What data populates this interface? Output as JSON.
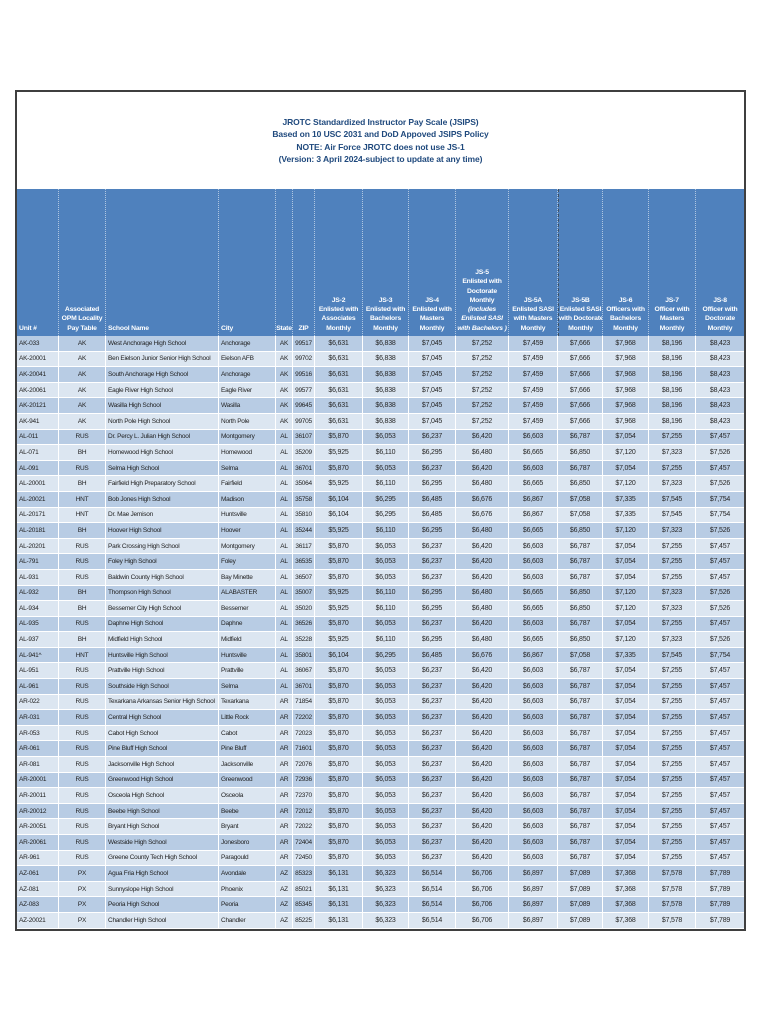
{
  "document": {
    "title_lines": [
      "JROTC Standardized Instructor Pay Scale (JSIPS)",
      "Based on 10 USC 2031 and DoD Appoved JSIPS Policy",
      "NOTE: Air Force JROTC does not use JS-1",
      "(Version: 3 April 2024-subject to update at any time)"
    ]
  },
  "colors": {
    "header_bg": "#4f81bd",
    "row_band_dark": "#b8cce4",
    "row_band_light": "#dce6f1",
    "title_text": "#1f497d",
    "frame_border": "#3f3f3f"
  },
  "table": {
    "columns": [
      {
        "id": "unit",
        "lines": [
          "Unit #"
        ],
        "align": "left"
      },
      {
        "id": "opm",
        "lines": [
          "Associated",
          "OPM Locality",
          "Pay Table"
        ],
        "align": "center"
      },
      {
        "id": "school",
        "lines": [
          "School Name"
        ],
        "align": "left"
      },
      {
        "id": "city",
        "lines": [
          "City"
        ],
        "align": "left"
      },
      {
        "id": "state",
        "lines": [
          "State"
        ],
        "align": "center"
      },
      {
        "id": "zip",
        "lines": [
          "ZIP"
        ],
        "align": "center"
      },
      {
        "id": "js2",
        "lines": [
          "JS-2",
          "Enlisted with",
          "Associates",
          "Monthly"
        ],
        "align": "center"
      },
      {
        "id": "js3",
        "lines": [
          "JS-3",
          "Enlisted with",
          "Bachelors",
          "Monthly"
        ],
        "align": "center"
      },
      {
        "id": "js4",
        "lines": [
          "JS-4",
          "Enlisted with",
          "Masters",
          "Monthly"
        ],
        "align": "center"
      },
      {
        "id": "js5",
        "lines": [
          "JS-5",
          "Enlisted with",
          "Doctorate",
          "Monthly",
          "(includes",
          "Enlisted SASI",
          "with Bachelors )"
        ],
        "italic_from": 4,
        "align": "center"
      },
      {
        "id": "js5a",
        "lines": [
          "JS-5A",
          "Enlisted SASI",
          "with Masters",
          "Monthly"
        ],
        "align": "center"
      },
      {
        "id": "js5b",
        "lines": [
          "JS-5B",
          "Enlisted SASI",
          "with Doctorate",
          "Monthly"
        ],
        "align": "center",
        "pagebreak_left": true
      },
      {
        "id": "js6",
        "lines": [
          "JS-6",
          "Officers with",
          "Bachelors",
          "Monthly"
        ],
        "align": "center"
      },
      {
        "id": "js7",
        "lines": [
          "JS-7",
          "Officer with",
          "Masters",
          "Monthly"
        ],
        "align": "center"
      },
      {
        "id": "js8",
        "lines": [
          "JS-8",
          "Officer with",
          "Doctorate",
          "Monthly"
        ],
        "align": "center"
      }
    ],
    "pay_by_locality": {
      "AK": [
        "$6,631",
        "$6,838",
        "$7,045",
        "$7,252",
        "$7,459",
        "$7,666",
        "$7,968",
        "$8,196",
        "$8,423"
      ],
      "RUS": [
        "$5,870",
        "$6,053",
        "$6,237",
        "$6,420",
        "$6,603",
        "$6,787",
        "$7,054",
        "$7,255",
        "$7,457"
      ],
      "BH": [
        "$5,925",
        "$6,110",
        "$6,295",
        "$6,480",
        "$6,665",
        "$6,850",
        "$7,120",
        "$7,323",
        "$7,526"
      ],
      "HNT": [
        "$6,104",
        "$6,295",
        "$6,485",
        "$6,676",
        "$6,867",
        "$7,058",
        "$7,335",
        "$7,545",
        "$7,754"
      ],
      "PX": [
        "$6,131",
        "$6,323",
        "$6,514",
        "$6,706",
        "$6,897",
        "$7,089",
        "$7,368",
        "$7,578",
        "$7,789"
      ]
    },
    "rows": [
      {
        "unit": "AK-033",
        "opm": "AK",
        "school": "West Anchorage High School",
        "city": "Anchorage",
        "state": "AK",
        "zip": "99517"
      },
      {
        "unit": "AK-20001",
        "opm": "AK",
        "school": "Ben Eielson Junior Senior High School",
        "city": "Eielson AFB",
        "state": "AK",
        "zip": "99702"
      },
      {
        "unit": "AK-20041",
        "opm": "AK",
        "school": "South Anchorage High School",
        "city": "Anchorage",
        "state": "AK",
        "zip": "99516"
      },
      {
        "unit": "AK-20061",
        "opm": "AK",
        "school": "Eagle River High School",
        "city": "Eagle River",
        "state": "AK",
        "zip": "99577"
      },
      {
        "unit": "AK-20121",
        "opm": "AK",
        "school": "Wasilla High School",
        "city": "Wasilla",
        "state": "AK",
        "zip": "99645"
      },
      {
        "unit": "AK-941",
        "opm": "AK",
        "school": "North Pole High School",
        "city": "North Pole",
        "state": "AK",
        "zip": "99705"
      },
      {
        "unit": "AL-011",
        "opm": "RUS",
        "school": "Dr. Percy L. Julian High School",
        "city": "Montgomery",
        "state": "AL",
        "zip": "36107"
      },
      {
        "unit": "AL-071",
        "opm": "BH",
        "school": "Homewood High School",
        "city": "Homewood",
        "state": "AL",
        "zip": "35209"
      },
      {
        "unit": "AL-091",
        "opm": "RUS",
        "school": "Selma High School",
        "city": "Selma",
        "state": "AL",
        "zip": "36701"
      },
      {
        "unit": "AL-20001",
        "opm": "BH",
        "school": "Fairfield High Preparatory School",
        "city": "Fairfield",
        "state": "AL",
        "zip": "35064"
      },
      {
        "unit": "AL-20021",
        "opm": "HNT",
        "school": "Bob Jones High School",
        "city": "Madison",
        "state": "AL",
        "zip": "35758"
      },
      {
        "unit": "AL-20171",
        "opm": "HNT",
        "school": "Dr. Mae Jemison",
        "city": "Huntsville",
        "state": "AL",
        "zip": "35810"
      },
      {
        "unit": "AL-20181",
        "opm": "BH",
        "school": "Hoover High School",
        "city": "Hoover",
        "state": "AL",
        "zip": "35244"
      },
      {
        "unit": "AL-20201",
        "opm": "RUS",
        "school": "Park Crossing High School",
        "city": "Montgomery",
        "state": "AL",
        "zip": "36117"
      },
      {
        "unit": "AL-791",
        "opm": "RUS",
        "school": "Foley High School",
        "city": "Foley",
        "state": "AL",
        "zip": "36535"
      },
      {
        "unit": "AL-931",
        "opm": "RUS",
        "school": "Baldwin County High School",
        "city": "Bay Minette",
        "state": "AL",
        "zip": "36507"
      },
      {
        "unit": "AL-932",
        "opm": "BH",
        "school": "Thompson High School",
        "city": "ALABASTER",
        "state": "AL",
        "zip": "35007"
      },
      {
        "unit": "AL-934",
        "opm": "BH",
        "school": "Bessemer City High School",
        "city": "Bessemer",
        "state": "AL",
        "zip": "35020"
      },
      {
        "unit": "AL-935",
        "opm": "RUS",
        "school": "Daphne High School",
        "city": "Daphne",
        "state": "AL",
        "zip": "36526"
      },
      {
        "unit": "AL-937",
        "opm": "BH",
        "school": "Midfield High School",
        "city": "Midfield",
        "state": "AL",
        "zip": "35228"
      },
      {
        "unit": "AL-941^",
        "opm": "HNT",
        "school": "Huntsville High School",
        "city": "Huntsville",
        "state": "AL",
        "zip": "35801"
      },
      {
        "unit": "AL-951",
        "opm": "RUS",
        "school": "Prattville High School",
        "city": "Prattville",
        "state": "AL",
        "zip": "36067"
      },
      {
        "unit": "AL-961",
        "opm": "RUS",
        "school": "Southside High School",
        "city": "Selma",
        "state": "AL",
        "zip": "36701"
      },
      {
        "unit": "AR-022",
        "opm": "RUS",
        "school": "Texarkana Arkansas Senior High School",
        "city": "Texarkana",
        "state": "AR",
        "zip": "71854"
      },
      {
        "unit": "AR-031",
        "opm": "RUS",
        "school": "Central High School",
        "city": "Little Rock",
        "state": "AR",
        "zip": "72202"
      },
      {
        "unit": "AR-053",
        "opm": "RUS",
        "school": "Cabot High School",
        "city": "Cabot",
        "state": "AR",
        "zip": "72023"
      },
      {
        "unit": "AR-061",
        "opm": "RUS",
        "school": "Pine Bluff High School",
        "city": "Pine Bluff",
        "state": "AR",
        "zip": "71601"
      },
      {
        "unit": "AR-081",
        "opm": "RUS",
        "school": "Jacksonville High School",
        "city": "Jacksonville",
        "state": "AR",
        "zip": "72076"
      },
      {
        "unit": "AR-20001",
        "opm": "RUS",
        "school": "Greenwood High School",
        "city": "Greenwood",
        "state": "AR",
        "zip": "72936"
      },
      {
        "unit": "AR-20011",
        "opm": "RUS",
        "school": "Osceola High School",
        "city": "Osceola",
        "state": "AR",
        "zip": "72370"
      },
      {
        "unit": "AR-20012",
        "opm": "RUS",
        "school": "Beebe High School",
        "city": "Beebe",
        "state": "AR",
        "zip": "72012"
      },
      {
        "unit": "AR-20051",
        "opm": "RUS",
        "school": "Bryant High School",
        "city": "Bryant",
        "state": "AR",
        "zip": "72022"
      },
      {
        "unit": "AR-20061",
        "opm": "RUS",
        "school": "Westside High School",
        "city": "Jonesboro",
        "state": "AR",
        "zip": "72404"
      },
      {
        "unit": "AR-961",
        "opm": "RUS",
        "school": "Greene County Tech High School",
        "city": "Paragould",
        "state": "AR",
        "zip": "72450"
      },
      {
        "unit": "AZ-061",
        "opm": "PX",
        "school": "Agua Fria High School",
        "city": "Avondale",
        "state": "AZ",
        "zip": "85323"
      },
      {
        "unit": "AZ-081",
        "opm": "PX",
        "school": "Sunnyslope High School",
        "city": "Phoenix",
        "state": "AZ",
        "zip": "85021"
      },
      {
        "unit": "AZ-083",
        "opm": "PX",
        "school": "Peoria High School",
        "city": "Peoria",
        "state": "AZ",
        "zip": "85345"
      },
      {
        "unit": "AZ-20021",
        "opm": "PX",
        "school": "Chandler High School",
        "city": "Chandler",
        "state": "AZ",
        "zip": "85225"
      }
    ]
  }
}
